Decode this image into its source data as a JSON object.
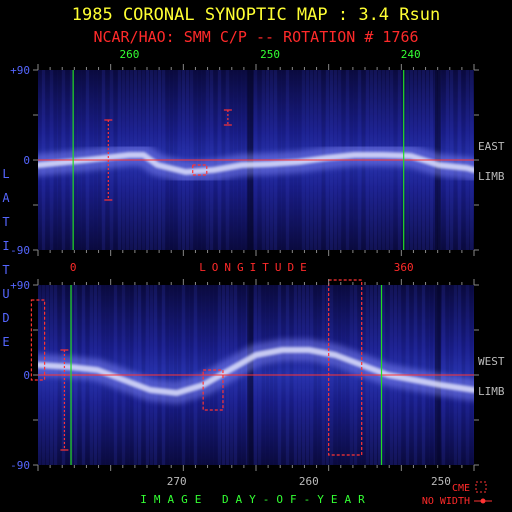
{
  "header": {
    "title": "1985 CORONAL SYNOPTIC MAP : 3.4 Rsun",
    "subtitle": "NCAR/HAO: SMM C/P -- ROTATION # 1766"
  },
  "colors": {
    "title": "#ffff33",
    "subtitle": "#ff2a2a",
    "axis_text_blue": "#5566ff",
    "axis_text_green": "#33ff33",
    "axis_text_gray": "#bbbbbb",
    "axis_text_red": "#ff2a2a",
    "boundary_line": "#22dd22",
    "equator_line": "#ff3333",
    "cme_box": "#ff3333",
    "map_background": "#101060"
  },
  "chart_data": [
    {
      "type": "heatmap",
      "panel": "east-limb",
      "top_axis_ticks": [
        "260",
        "250",
        "240"
      ],
      "top_axis_tick_values": [
        260,
        250,
        240
      ],
      "left_axis_ticks": [
        "+90",
        "0",
        "-90"
      ],
      "right_label": [
        "EAST",
        "LIMB"
      ],
      "bottom_axis_ticks": [
        "0",
        "360"
      ],
      "bottom_axis_label": "LONGITUDE",
      "xlim_day": [
        266.5,
        235.5
      ],
      "ylim": [
        -90,
        90
      ],
      "vertical_markers_day": [
        264,
        240.5
      ],
      "equator": 0,
      "streamer_belt": [
        [
          266.5,
          -5
        ],
        [
          263,
          0
        ],
        [
          260,
          5
        ],
        [
          259,
          5
        ],
        [
          258,
          -5
        ],
        [
          256,
          -12
        ],
        [
          254,
          -10
        ],
        [
          252,
          -5
        ],
        [
          250,
          -4
        ],
        [
          248,
          -2
        ],
        [
          246,
          2
        ],
        [
          244,
          5
        ],
        [
          242,
          5
        ],
        [
          240,
          4
        ],
        [
          238,
          -5
        ],
        [
          236,
          -8
        ],
        [
          235.5,
          -10
        ]
      ],
      "cme_events": [
        {
          "day_range": [
            261.5,
            261.5
          ],
          "lat_range": [
            -40,
            40
          ]
        },
        {
          "day_range": [
            255.5,
            254.5
          ],
          "lat_range": [
            -15,
            -5
          ]
        },
        {
          "day_range": [
            253,
            253
          ],
          "lat_range": [
            35,
            50
          ]
        }
      ]
    },
    {
      "type": "heatmap",
      "panel": "west-limb",
      "left_axis_ticks": [
        "+90",
        "0",
        "-90"
      ],
      "right_label": [
        "WEST",
        "LIMB"
      ],
      "bottom_axis_ticks": [
        "270",
        "260",
        "250"
      ],
      "bottom_axis_tick_values": [
        270,
        260,
        250
      ],
      "bottom_axis_label": "IMAGE DAY-OF-YEAR",
      "xlim_day": [
        280.5,
        247.5
      ],
      "ylim": [
        -90,
        90
      ],
      "vertical_markers_day": [
        278,
        254.5
      ],
      "equator": 0,
      "streamer_belt": [
        [
          280.5,
          10
        ],
        [
          278,
          8
        ],
        [
          276,
          5
        ],
        [
          274,
          -5
        ],
        [
          272,
          -15
        ],
        [
          270,
          -18
        ],
        [
          268,
          -10
        ],
        [
          266,
          5
        ],
        [
          264,
          20
        ],
        [
          262,
          25
        ],
        [
          260,
          25
        ],
        [
          258,
          20
        ],
        [
          256,
          10
        ],
        [
          254,
          0
        ],
        [
          252,
          -5
        ],
        [
          250,
          -10
        ],
        [
          247.5,
          -15
        ]
      ],
      "cme_events": [
        {
          "day_range": [
            281,
            280
          ],
          "lat_range": [
            -5,
            75
          ]
        },
        {
          "day_range": [
            278.5,
            278.5
          ],
          "lat_range": [
            -75,
            25
          ]
        },
        {
          "day_range": [
            268,
            266.5
          ],
          "lat_range": [
            -35,
            5
          ]
        },
        {
          "day_range": [
            258.5,
            256
          ],
          "lat_range": [
            -80,
            95
          ]
        }
      ],
      "legend": [
        {
          "label": "CME",
          "symbol": "dashed-box"
        },
        {
          "label": "NO WIDTH",
          "symbol": "dot-line"
        }
      ]
    }
  ],
  "side_label": {
    "text": "LATITUDE"
  }
}
